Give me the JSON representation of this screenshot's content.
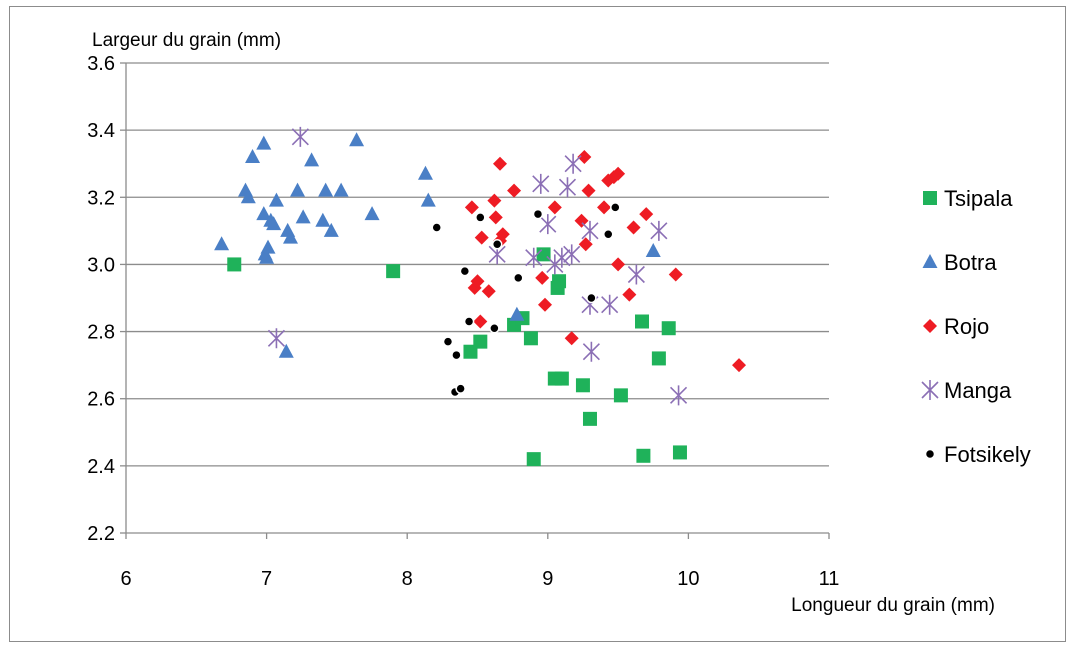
{
  "chart_data": {
    "type": "scatter",
    "title": "",
    "xlabel": "Longueur du grain (mm)",
    "ylabel": "Largeur du grain (mm)",
    "xlim": [
      6,
      11
    ],
    "ylim": [
      2.2,
      3.6
    ],
    "xticks": [
      6,
      7,
      8,
      9,
      10,
      11
    ],
    "yticks": [
      2.2,
      2.4,
      2.6,
      2.8,
      3.0,
      3.2,
      3.4,
      3.6
    ],
    "xtick_labels": [
      "6",
      "7",
      "8",
      "9",
      "10",
      "11"
    ],
    "ytick_labels": [
      "2.2",
      "2.4",
      "2.6",
      "2.8",
      "3.0",
      "3.2",
      "3.4",
      "3.6"
    ],
    "grid": "horizontal",
    "legend_position": "right",
    "series": [
      {
        "name": "Tsipala",
        "marker": "square",
        "color": "#1fb25a",
        "points": [
          [
            6.77,
            3.0
          ],
          [
            7.9,
            2.98
          ],
          [
            8.45,
            2.74
          ],
          [
            8.52,
            2.77
          ],
          [
            8.76,
            2.82
          ],
          [
            8.82,
            2.84
          ],
          [
            8.88,
            2.78
          ],
          [
            8.9,
            2.42
          ],
          [
            8.97,
            3.03
          ],
          [
            9.05,
            2.66
          ],
          [
            9.07,
            2.93
          ],
          [
            9.08,
            2.95
          ],
          [
            9.1,
            2.66
          ],
          [
            9.25,
            2.64
          ],
          [
            9.3,
            2.54
          ],
          [
            9.52,
            2.61
          ],
          [
            9.67,
            2.83
          ],
          [
            9.68,
            2.43
          ],
          [
            9.79,
            2.72
          ],
          [
            9.86,
            2.81
          ],
          [
            9.94,
            2.44
          ]
        ]
      },
      {
        "name": "Botra",
        "marker": "triangle",
        "color": "#4a7fc6",
        "points": [
          [
            6.68,
            3.06
          ],
          [
            6.85,
            3.22
          ],
          [
            6.87,
            3.2
          ],
          [
            6.9,
            3.32
          ],
          [
            6.98,
            3.36
          ],
          [
            6.98,
            3.15
          ],
          [
            6.99,
            3.03
          ],
          [
            7.0,
            3.02
          ],
          [
            7.01,
            3.05
          ],
          [
            7.03,
            3.13
          ],
          [
            7.05,
            3.12
          ],
          [
            7.07,
            3.19
          ],
          [
            7.14,
            2.74
          ],
          [
            7.15,
            3.1
          ],
          [
            7.17,
            3.08
          ],
          [
            7.22,
            3.22
          ],
          [
            7.26,
            3.14
          ],
          [
            7.32,
            3.31
          ],
          [
            7.4,
            3.13
          ],
          [
            7.42,
            3.22
          ],
          [
            7.46,
            3.1
          ],
          [
            7.53,
            3.22
          ],
          [
            7.64,
            3.37
          ],
          [
            7.75,
            3.15
          ],
          [
            8.13,
            3.27
          ],
          [
            8.15,
            3.19
          ],
          [
            8.78,
            2.85
          ],
          [
            9.75,
            3.04
          ]
        ]
      },
      {
        "name": "Rojo",
        "marker": "diamond",
        "color": "#ee1c24",
        "points": [
          [
            8.46,
            3.17
          ],
          [
            8.48,
            2.93
          ],
          [
            8.5,
            2.95
          ],
          [
            8.52,
            2.83
          ],
          [
            8.53,
            3.08
          ],
          [
            8.58,
            2.92
          ],
          [
            8.62,
            3.19
          ],
          [
            8.63,
            3.14
          ],
          [
            8.66,
            3.3
          ],
          [
            8.66,
            3.07
          ],
          [
            8.68,
            3.09
          ],
          [
            8.76,
            3.22
          ],
          [
            8.96,
            2.96
          ],
          [
            8.98,
            2.88
          ],
          [
            9.05,
            3.17
          ],
          [
            9.17,
            2.78
          ],
          [
            9.24,
            3.13
          ],
          [
            9.26,
            3.32
          ],
          [
            9.27,
            3.06
          ],
          [
            9.29,
            3.22
          ],
          [
            9.4,
            3.17
          ],
          [
            9.43,
            3.25
          ],
          [
            9.47,
            3.26
          ],
          [
            9.5,
            3.27
          ],
          [
            9.5,
            3.0
          ],
          [
            9.58,
            2.91
          ],
          [
            9.61,
            3.11
          ],
          [
            9.7,
            3.15
          ],
          [
            9.91,
            2.97
          ],
          [
            10.36,
            2.7
          ]
        ]
      },
      {
        "name": "Manga",
        "marker": "asterisk",
        "color": "#8b6fb5",
        "points": [
          [
            7.07,
            2.78
          ],
          [
            7.24,
            3.38
          ],
          [
            8.64,
            3.03
          ],
          [
            8.9,
            3.02
          ],
          [
            8.95,
            3.24
          ],
          [
            9.0,
            3.12
          ],
          [
            9.05,
            3.0
          ],
          [
            9.1,
            3.02
          ],
          [
            9.14,
            3.23
          ],
          [
            9.17,
            3.03
          ],
          [
            9.18,
            3.3
          ],
          [
            9.3,
            3.1
          ],
          [
            9.31,
            2.74
          ],
          [
            9.3,
            2.88
          ],
          [
            9.44,
            2.88
          ],
          [
            9.63,
            2.97
          ],
          [
            9.79,
            3.1
          ],
          [
            9.93,
            2.61
          ]
        ]
      },
      {
        "name": "Fotsikely",
        "marker": "circle",
        "color": "#000000",
        "points": [
          [
            8.21,
            3.11
          ],
          [
            8.29,
            2.77
          ],
          [
            8.34,
            2.62
          ],
          [
            8.35,
            2.73
          ],
          [
            8.38,
            2.63
          ],
          [
            8.41,
            2.98
          ],
          [
            8.44,
            2.83
          ],
          [
            8.52,
            3.14
          ],
          [
            8.62,
            2.81
          ],
          [
            8.64,
            3.06
          ],
          [
            8.79,
            2.96
          ],
          [
            8.93,
            3.15
          ],
          [
            9.31,
            2.9
          ],
          [
            9.43,
            3.09
          ],
          [
            9.48,
            3.17
          ]
        ]
      }
    ]
  }
}
